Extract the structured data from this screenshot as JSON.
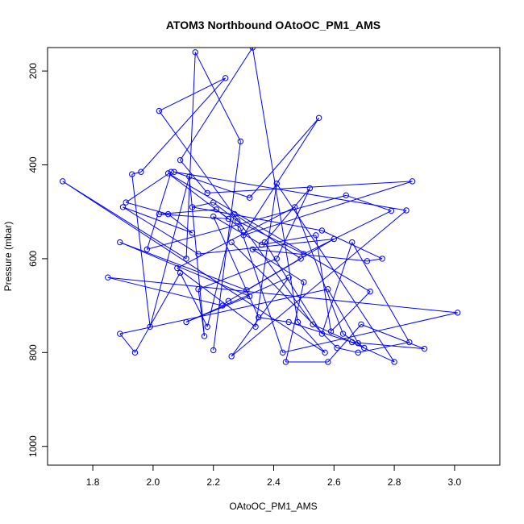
{
  "chart_data": {
    "type": "line",
    "title": "ATOM3 Northbound OAtoOC_PM1_AMS",
    "xlabel": "OAtoOC_PM1_AMS",
    "ylabel": "Pressure (mbar)",
    "xlim": [
      1.65,
      3.15
    ],
    "ylim": [
      1040,
      150
    ],
    "y_reversed": true,
    "x_ticks": [
      1.8,
      2.0,
      2.2,
      2.4,
      2.6,
      2.8,
      3.0
    ],
    "x_tick_labels": [
      "1.8",
      "2.0",
      "2.2",
      "2.4",
      "2.6",
      "2.8",
      "3.0"
    ],
    "y_ticks": [
      200,
      400,
      600,
      800,
      1000
    ],
    "y_tick_labels": [
      "200",
      "400",
      "600",
      "800",
      "1000"
    ],
    "grid": false,
    "legend": "none",
    "series": [
      {
        "color": "#0000ff",
        "marker": "open-circle",
        "points": [
          [
            2.2,
            795
          ],
          [
            2.29,
            350
          ],
          [
            2.14,
            160
          ],
          [
            2.11,
            600
          ],
          [
            1.7,
            435
          ],
          [
            2.57,
            800
          ],
          [
            2.48,
            735
          ],
          [
            2.33,
            150
          ],
          [
            2.09,
            390
          ],
          [
            2.18,
            460
          ],
          [
            2.86,
            435
          ],
          [
            2.3,
            550
          ],
          [
            2.55,
            300
          ],
          [
            2.32,
            470
          ],
          [
            2.07,
            415
          ],
          [
            2.84,
            497
          ],
          [
            2.26,
            808
          ],
          [
            2.45,
            640
          ],
          [
            2.11,
            735
          ],
          [
            2.32,
            680
          ],
          [
            1.89,
            565
          ],
          [
            2.31,
            667
          ],
          [
            2.6,
            558
          ],
          [
            2.15,
            590
          ],
          [
            1.9,
            490
          ],
          [
            2.13,
            545
          ],
          [
            2.05,
            505
          ],
          [
            1.91,
            480
          ],
          [
            2.06,
            415
          ],
          [
            1.98,
            580
          ],
          [
            2.64,
            465
          ],
          [
            2.79,
            498
          ],
          [
            2.5,
            590
          ],
          [
            2.28,
            520
          ],
          [
            2.2,
            480
          ],
          [
            2.13,
            490
          ],
          [
            2.56,
            540
          ],
          [
            2.76,
            600
          ],
          [
            2.71,
            605
          ],
          [
            2.33,
            580
          ],
          [
            2.5,
            650
          ],
          [
            2.44,
            820
          ],
          [
            2.58,
            820
          ],
          [
            2.69,
            740
          ],
          [
            2.9,
            792
          ],
          [
            2.66,
            778
          ],
          [
            2.45,
            735
          ],
          [
            2.35,
            725
          ],
          [
            2.2,
            510
          ],
          [
            2.36,
            570
          ],
          [
            2.54,
            550
          ],
          [
            2.59,
            755
          ],
          [
            2.72,
            670
          ],
          [
            2.05,
            418
          ],
          [
            2.25,
            515
          ],
          [
            2.02,
            505
          ],
          [
            2.21,
            495
          ],
          [
            2.29,
            535
          ],
          [
            2.43,
            800
          ],
          [
            3.01,
            715
          ],
          [
            1.85,
            640
          ],
          [
            2.23,
            700
          ],
          [
            2.25,
            690
          ],
          [
            2.49,
            600
          ],
          [
            2.27,
            505
          ],
          [
            2.18,
            745
          ],
          [
            2.09,
            630
          ],
          [
            1.94,
            800
          ],
          [
            1.89,
            760
          ],
          [
            2.58,
            665
          ],
          [
            2.68,
            780
          ],
          [
            2.7,
            790
          ],
          [
            2.63,
            760
          ],
          [
            2.47,
            490
          ],
          [
            2.08,
            620
          ],
          [
            2.34,
            745
          ],
          [
            2.41,
            440
          ],
          [
            2.8,
            820
          ],
          [
            2.53,
            740
          ],
          [
            2.02,
            285
          ],
          [
            2.24,
            215
          ],
          [
            1.96,
            415
          ],
          [
            1.93,
            420
          ],
          [
            1.99,
            745
          ],
          [
            2.12,
            425
          ],
          [
            2.17,
            765
          ],
          [
            2.15,
            665
          ],
          [
            2.41,
            600
          ],
          [
            2.52,
            450
          ],
          [
            2.37,
            565
          ],
          [
            2.56,
            760
          ],
          [
            2.66,
            565
          ],
          [
            2.85,
            778
          ],
          [
            2.68,
            800
          ],
          [
            2.61,
            790
          ],
          [
            2.26,
            565
          ]
        ]
      }
    ]
  }
}
